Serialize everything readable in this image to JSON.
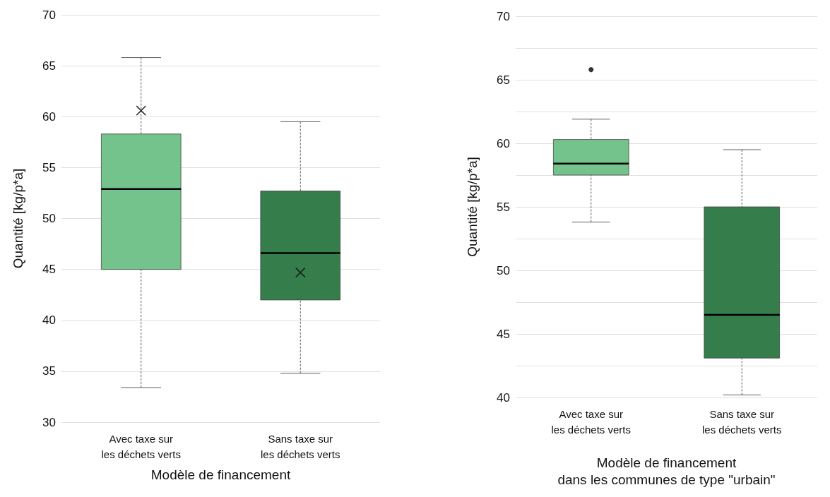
{
  "chart_data": [
    {
      "type": "box",
      "categories": [
        "Avec taxe sur\nles déchets verts",
        "Sans taxe sur\nles déchets verts"
      ],
      "xlabel": "Modèle de financement",
      "ylabel": "Quantité [kg/p*a]",
      "colors": [
        "#74c28c",
        "#367d4c"
      ],
      "boxes": [
        {
          "low": 33.4,
          "q1": 45.0,
          "median": 52.9,
          "q3": 58.3,
          "high": 65.8,
          "mean": 60.6
        },
        {
          "low": 34.8,
          "q1": 42.0,
          "median": 46.6,
          "q3": 52.7,
          "high": 59.5,
          "mean": 44.7
        }
      ],
      "ylim": [
        30,
        70
      ],
      "yticks": [
        30,
        35,
        40,
        45,
        50,
        55,
        60,
        65,
        70
      ],
      "grid": "y"
    },
    {
      "type": "box",
      "categories": [
        "Avec taxe sur\nles déchets verts",
        "Sans taxe sur\nles déchets verts"
      ],
      "xlabel": "Modèle de financement\ndans les communes de type \"urbain\"",
      "ylabel": "Quantité [kg/p*a]",
      "colors": [
        "#74c28c",
        "#367d4c"
      ],
      "boxes": [
        {
          "low": 53.8,
          "q1": 57.5,
          "median": 58.4,
          "q3": 60.3,
          "high": 61.9,
          "outliers": [
            65.8
          ]
        },
        {
          "low": 40.2,
          "q1": 43.1,
          "median": 46.5,
          "q3": 55.0,
          "high": 59.5
        }
      ],
      "ylim": [
        40,
        70
      ],
      "yticks": [
        40,
        {
          "value": 42.5,
          "label": null
        },
        45,
        {
          "value": 47.5,
          "label": null
        },
        50,
        {
          "value": 52.5,
          "label": null
        },
        55,
        {
          "value": 57.5,
          "label": null
        },
        60,
        {
          "value": 62.5,
          "label": null
        },
        65,
        {
          "value": 67.5,
          "label": null
        },
        70
      ],
      "grid": "y"
    }
  ]
}
